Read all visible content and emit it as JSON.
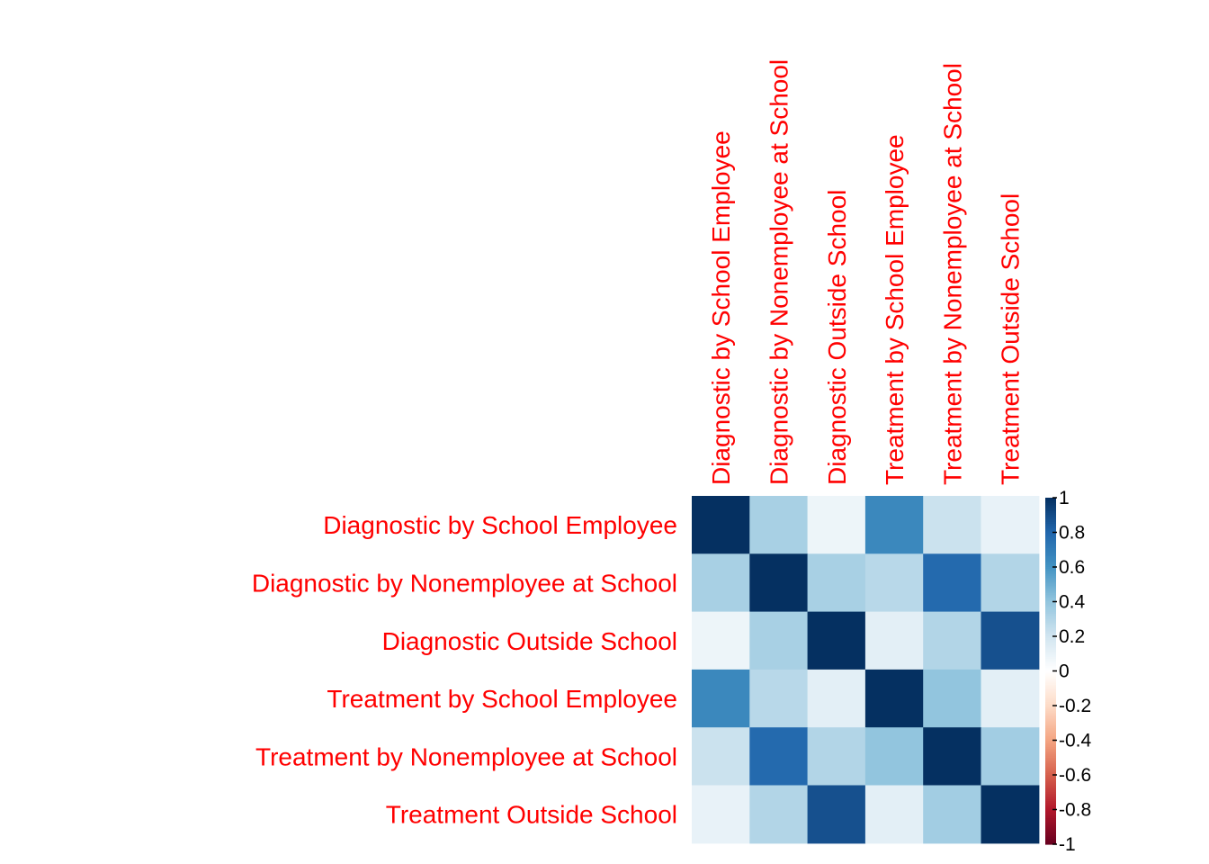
{
  "colors": {
    "label": "#ff0000",
    "strong_positive": "#053061",
    "weak": "#ffffff",
    "strong_negative": "#67001f",
    "palette": [
      "#67001f",
      "#b2182b",
      "#d6604d",
      "#f4a582",
      "#fddbc7",
      "#ffffff",
      "#d1e5f0",
      "#92c5de",
      "#4393c3",
      "#2166ac",
      "#053061"
    ]
  },
  "chart_data": {
    "type": "heatmap",
    "title": "",
    "row_labels": [
      "Diagnostic by School Employee",
      "Diagnostic by Nonemployee at School",
      "Diagnostic Outside School",
      "Treatment by School Employee",
      "Treatment by Nonemployee at School",
      "Treatment Outside School"
    ],
    "col_labels": [
      "Diagnostic by School Employee",
      "Diagnostic by Nonemployee at School",
      "Diagnostic Outside School",
      "Treatment by School Employee",
      "Treatment by Nonemployee at School",
      "Treatment Outside School"
    ],
    "values": [
      [
        1.0,
        0.33,
        0.08,
        0.65,
        0.22,
        0.1
      ],
      [
        0.33,
        1.0,
        0.33,
        0.28,
        0.78,
        0.3
      ],
      [
        0.08,
        0.33,
        1.0,
        0.12,
        0.3,
        0.88
      ],
      [
        0.65,
        0.28,
        0.12,
        1.0,
        0.4,
        0.12
      ],
      [
        0.22,
        0.78,
        0.3,
        0.4,
        1.0,
        0.35
      ],
      [
        0.1,
        0.3,
        0.88,
        0.12,
        0.35,
        1.0
      ]
    ],
    "color_scale": {
      "range": [
        -1,
        1
      ],
      "ticks": [
        "1",
        "0.8",
        "0.6",
        "0.4",
        "0.2",
        "0",
        "-0.2",
        "-0.4",
        "-0.6",
        "-0.8",
        "-1"
      ]
    }
  }
}
